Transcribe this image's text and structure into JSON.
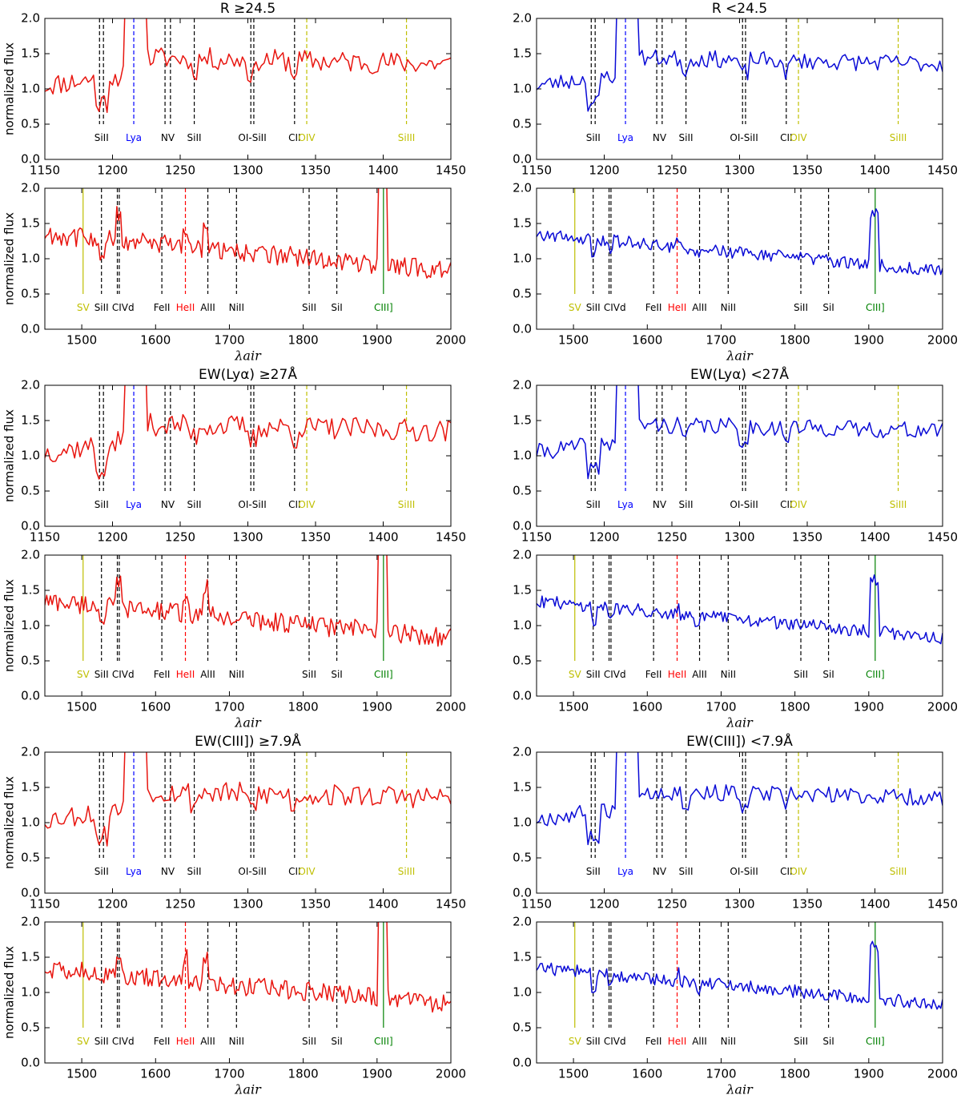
{
  "figure": {
    "ylabel": "normalized flux",
    "xlabel": "λair",
    "subset_colors": {
      "bright": "#e8150f",
      "faint": "#0a0bd6"
    },
    "line_colors": {
      "black": "#000000",
      "blue": "#0000ff",
      "yellow": "#bfbf00",
      "red": "#ff0000",
      "green": "#008000"
    }
  },
  "chart_data": [
    {
      "type": "line",
      "title": "R ≥24.5",
      "color_key": "bright",
      "seed": 11,
      "rows": [
        {
          "xlim": [
            1150,
            1450
          ],
          "ylim": [
            0.0,
            2.0
          ],
          "xticks": [
            1150,
            1200,
            1250,
            1300,
            1350,
            1400,
            1450
          ],
          "yticks": [
            0.0,
            0.5,
            1.0,
            1.5,
            2.0
          ],
          "xlabel": ""
        },
        {
          "xlim": [
            1450,
            2000
          ],
          "ylim": [
            0.0,
            2.0
          ],
          "xticks": [
            1500,
            1600,
            1700,
            1800,
            1900,
            2000
          ],
          "yticks": [
            0.0,
            0.5,
            1.0,
            1.5,
            2.0
          ],
          "xlabel": "λair"
        }
      ]
    },
    {
      "type": "line",
      "title": "R <24.5",
      "color_key": "faint",
      "seed": 23,
      "rows": [
        {
          "xlim": [
            1150,
            1450
          ],
          "ylim": [
            0.0,
            2.0
          ],
          "xticks": [
            1150,
            1200,
            1250,
            1300,
            1350,
            1400,
            1450
          ],
          "yticks": [
            0.0,
            0.5,
            1.0,
            1.5,
            2.0
          ],
          "xlabel": ""
        },
        {
          "xlim": [
            1450,
            2000
          ],
          "ylim": [
            0.0,
            2.0
          ],
          "xticks": [
            1500,
            1600,
            1700,
            1800,
            1900,
            2000
          ],
          "yticks": [
            0.0,
            0.5,
            1.0,
            1.5,
            2.0
          ],
          "xlabel": "λair"
        }
      ]
    },
    {
      "type": "line",
      "title": "EW(Lyα) ≥27Å",
      "color_key": "bright",
      "seed": 37,
      "rows": [
        {
          "xlim": [
            1150,
            1450
          ],
          "ylim": [
            0.0,
            2.0
          ],
          "xticks": [
            1150,
            1200,
            1250,
            1300,
            1350,
            1400,
            1450
          ],
          "yticks": [
            0.0,
            0.5,
            1.0,
            1.5,
            2.0
          ],
          "xlabel": ""
        },
        {
          "xlim": [
            1450,
            2000
          ],
          "ylim": [
            0.0,
            2.0
          ],
          "xticks": [
            1500,
            1600,
            1700,
            1800,
            1900,
            2000
          ],
          "yticks": [
            0.0,
            0.5,
            1.0,
            1.5,
            2.0
          ],
          "xlabel": "λair"
        }
      ]
    },
    {
      "type": "line",
      "title": "EW(Lyα) <27Å",
      "color_key": "faint",
      "seed": 41,
      "rows": [
        {
          "xlim": [
            1150,
            1450
          ],
          "ylim": [
            0.0,
            2.0
          ],
          "xticks": [
            1150,
            1200,
            1250,
            1300,
            1350,
            1400,
            1450
          ],
          "yticks": [
            0.0,
            0.5,
            1.0,
            1.5,
            2.0
          ],
          "xlabel": ""
        },
        {
          "xlim": [
            1450,
            2000
          ],
          "ylim": [
            0.0,
            2.0
          ],
          "xticks": [
            1500,
            1600,
            1700,
            1800,
            1900,
            2000
          ],
          "yticks": [
            0.0,
            0.5,
            1.0,
            1.5,
            2.0
          ],
          "xlabel": "λair"
        }
      ]
    },
    {
      "type": "line",
      "title": "EW(CIII]) ≥7.9Å",
      "color_key": "bright",
      "seed": 53,
      "rows": [
        {
          "xlim": [
            1150,
            1450
          ],
          "ylim": [
            0.0,
            2.0
          ],
          "xticks": [
            1150,
            1200,
            1250,
            1300,
            1350,
            1400,
            1450
          ],
          "yticks": [
            0.0,
            0.5,
            1.0,
            1.5,
            2.0
          ],
          "xlabel": ""
        },
        {
          "xlim": [
            1450,
            2000
          ],
          "ylim": [
            0.0,
            2.0
          ],
          "xticks": [
            1500,
            1600,
            1700,
            1800,
            1900,
            2000
          ],
          "yticks": [
            0.0,
            0.5,
            1.0,
            1.5,
            2.0
          ],
          "xlabel": "λair"
        }
      ]
    },
    {
      "type": "line",
      "title": "EW(CIII]) <7.9Å",
      "color_key": "faint",
      "seed": 67,
      "rows": [
        {
          "xlim": [
            1150,
            1450
          ],
          "ylim": [
            0.0,
            2.0
          ],
          "xticks": [
            1150,
            1200,
            1250,
            1300,
            1350,
            1400,
            1450
          ],
          "yticks": [
            0.0,
            0.5,
            1.0,
            1.5,
            2.0
          ],
          "xlabel": ""
        },
        {
          "xlim": [
            1450,
            2000
          ],
          "ylim": [
            0.0,
            2.0
          ],
          "xticks": [
            1500,
            1600,
            1700,
            1800,
            1900,
            2000
          ],
          "yticks": [
            0.0,
            0.5,
            1.0,
            1.5,
            2.0
          ],
          "xlabel": "λair"
        }
      ]
    }
  ],
  "line_markers": {
    "top": [
      {
        "wl": [
          1190.4,
          1193.3
        ],
        "label": "SiII",
        "color": "black",
        "dash": true
      },
      {
        "wl": [
          1215.7
        ],
        "label": "Lya",
        "color": "blue",
        "dash": true
      },
      {
        "wl": [
          1238.8,
          1242.8
        ],
        "label": "NV",
        "color": "black",
        "dash": true
      },
      {
        "wl": [
          1260.4
        ],
        "label": "SiII",
        "color": "black",
        "dash": true
      },
      {
        "wl": [
          1302.2,
          1304.4
        ],
        "label": "OI-SiII",
        "color": "black",
        "dash": true
      },
      {
        "wl": [
          1334.5
        ],
        "label": "CII",
        "color": "black",
        "dash": true
      },
      {
        "wl": [
          1343.5
        ],
        "label": "OIV",
        "color": "yellow",
        "dash": true
      },
      {
        "wl": [
          1417.2
        ],
        "label": "SiIII",
        "color": "yellow",
        "dash": true
      }
    ],
    "bottom": [
      {
        "wl": [
          1501.8
        ],
        "label": "SV",
        "color": "yellow",
        "dash": false
      },
      {
        "wl": [
          1526.7
        ],
        "label": "SiII",
        "color": "black",
        "dash": true
      },
      {
        "wl": [
          1548.2,
          1550.8
        ],
        "label": "CIVd",
        "color": "black",
        "dash": true
      },
      {
        "wl": [
          1608.5
        ],
        "label": "FeII",
        "color": "black",
        "dash": true
      },
      {
        "wl": [
          1640.4
        ],
        "label": "HeII",
        "color": "red",
        "dash": true
      },
      {
        "wl": [
          1670.8
        ],
        "label": "AlII",
        "color": "black",
        "dash": true
      },
      {
        "wl": [
          1709.6
        ],
        "label": "NiII",
        "color": "black",
        "dash": true
      },
      {
        "wl": [
          1808.0
        ],
        "label": "SiII",
        "color": "black",
        "dash": true
      },
      {
        "wl": [
          1845.5
        ],
        "label": "SiI",
        "color": "black",
        "dash": true
      },
      {
        "wl": [
          1908.7
        ],
        "label": "CIII]",
        "color": "green",
        "dash": false
      }
    ]
  }
}
